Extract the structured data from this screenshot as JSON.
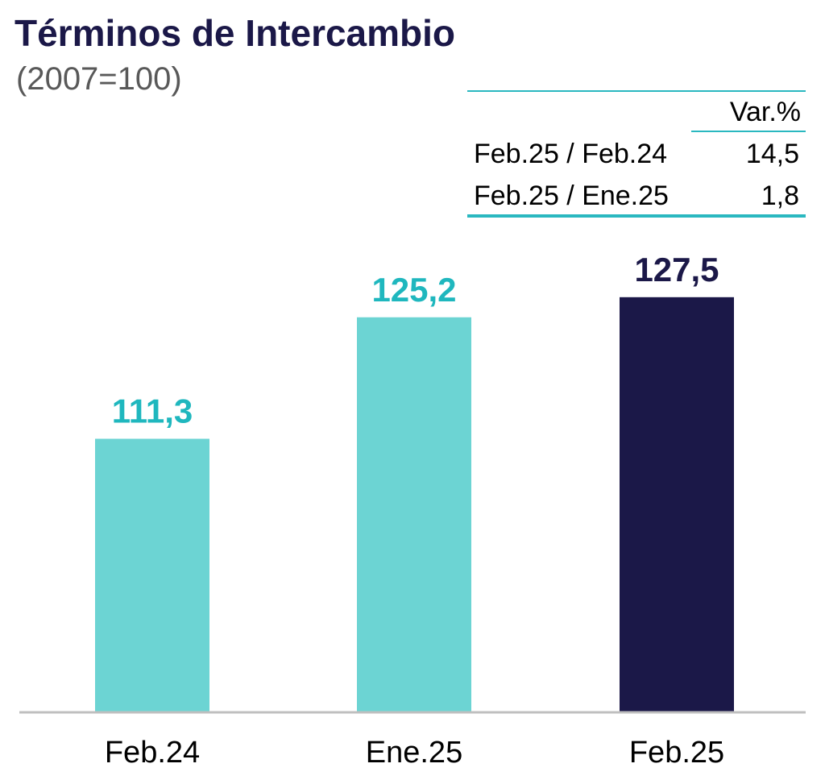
{
  "title": "Términos de Intercambio",
  "subtitle": "(2007=100)",
  "variation_table": {
    "header": "Var.%",
    "rows": [
      {
        "label": "Feb.25 / Feb.24",
        "value": "14,5"
      },
      {
        "label": "Feb.25 / Ene.25",
        "value": "1,8"
      }
    ]
  },
  "colors": {
    "title": "#1b1848",
    "accent": "#2ab8c0",
    "bar_light": "#6cd4d3",
    "bar_dark": "#1b1848",
    "label_light": "#1fb7be",
    "label_dark": "#1b1848",
    "axis": "#bfbfbf"
  },
  "chart_data": {
    "type": "bar",
    "categories": [
      "Feb.24",
      "Ene.25",
      "Feb.25"
    ],
    "values": [
      111.3,
      125.2,
      127.5
    ],
    "data_labels": [
      "111,3",
      "125,2",
      "127,5"
    ],
    "highlight_index": 2,
    "ylim": [
      80,
      132
    ],
    "grid": false
  }
}
